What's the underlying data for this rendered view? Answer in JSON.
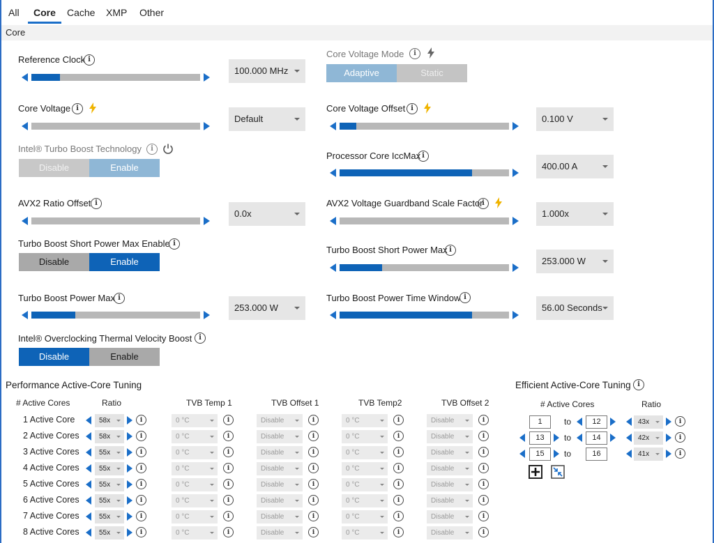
{
  "tabs": [
    "All",
    "Core",
    "Cache",
    "XMP",
    "Other"
  ],
  "section_title": "Core",
  "left": {
    "reference_clock": {
      "label": "Reference Clock",
      "level": 0.17,
      "value": "100.000 MHz"
    },
    "core_voltage": {
      "label": "Core Voltage",
      "level": 0.0,
      "value": "Default"
    },
    "turbo_boost_tech": {
      "label": "Intel® Turbo Boost Technology",
      "options": [
        "Disable",
        "Enable"
      ],
      "selected": "Enable"
    },
    "avx2_ratio_offset": {
      "label": "AVX2 Ratio Offset",
      "level": 0.0,
      "value": "0.0x"
    },
    "short_power_enable": {
      "label": "Turbo Boost Short Power Max Enable",
      "options": [
        "Disable",
        "Enable"
      ],
      "selected": "Enable"
    },
    "power_max": {
      "label": "Turbo Boost Power Max",
      "level": 0.26,
      "value": "253.000 W"
    },
    "tvb": {
      "label": "Intel® Overclocking Thermal Velocity Boost",
      "options": [
        "Disable",
        "Enable"
      ],
      "selected": "Disable"
    }
  },
  "right": {
    "core_voltage_mode": {
      "label": "Core Voltage Mode",
      "options": [
        "Adaptive",
        "Static"
      ],
      "selected": "Adaptive"
    },
    "core_voltage_offset": {
      "label": "Core Voltage Offset",
      "level": 0.1,
      "value": "0.100 V"
    },
    "iccmax": {
      "label": "Processor Core IccMax",
      "level": 0.78,
      "value": "400.00 A"
    },
    "avx2_guardband": {
      "label": "AVX2 Voltage Guardband Scale Factor",
      "level": 0.0,
      "value": "1.000x"
    },
    "short_power_max": {
      "label": "Turbo Boost Short Power Max",
      "level": 0.25,
      "value": "253.000 W"
    },
    "power_time_window": {
      "label": "Turbo Boost Power Time Window",
      "level": 0.78,
      "value": "56.00 Seconds"
    }
  },
  "perf": {
    "title": "Performance Active-Core Tuning",
    "headers": [
      "# Active Cores",
      "Ratio",
      "TVB Temp 1",
      "TVB Offset 1",
      "TVB Temp2",
      "TVB Offset 2"
    ],
    "rows": [
      {
        "label": "1 Active Core",
        "ratio": "58x",
        "temp1": "0 °C",
        "offset1": "Disable",
        "temp2": "0 °C",
        "offset2": "Disable"
      },
      {
        "label": "2 Active Cores",
        "ratio": "58x",
        "temp1": "0 °C",
        "offset1": "Disable",
        "temp2": "0 °C",
        "offset2": "Disable"
      },
      {
        "label": "3 Active Cores",
        "ratio": "55x",
        "temp1": "0 °C",
        "offset1": "Disable",
        "temp2": "0 °C",
        "offset2": "Disable"
      },
      {
        "label": "4 Active Cores",
        "ratio": "55x",
        "temp1": "0 °C",
        "offset1": "Disable",
        "temp2": "0 °C",
        "offset2": "Disable"
      },
      {
        "label": "5 Active Cores",
        "ratio": "55x",
        "temp1": "0 °C",
        "offset1": "Disable",
        "temp2": "0 °C",
        "offset2": "Disable"
      },
      {
        "label": "6 Active Cores",
        "ratio": "55x",
        "temp1": "0 °C",
        "offset1": "Disable",
        "temp2": "0 °C",
        "offset2": "Disable"
      },
      {
        "label": "7 Active Cores",
        "ratio": "55x",
        "temp1": "0 °C",
        "offset1": "Disable",
        "temp2": "0 °C",
        "offset2": "Disable"
      },
      {
        "label": "8 Active Cores",
        "ratio": "55x",
        "temp1": "0 °C",
        "offset1": "Disable",
        "temp2": "0 °C",
        "offset2": "Disable"
      }
    ]
  },
  "eff": {
    "title": "Efficient Active-Core Tuning",
    "headers": [
      "# Active Cores",
      "Ratio"
    ],
    "to_label": "to",
    "rows": [
      {
        "from": "1",
        "to": "12",
        "ratio": "43x"
      },
      {
        "from": "13",
        "to": "14",
        "ratio": "42x"
      },
      {
        "from": "15",
        "to": "16",
        "ratio": "41x"
      }
    ]
  },
  "info_glyph": "i",
  "colors": {
    "accent": "#0e63b7",
    "bolt": "#f0b400",
    "track": "#b8b8b8"
  }
}
